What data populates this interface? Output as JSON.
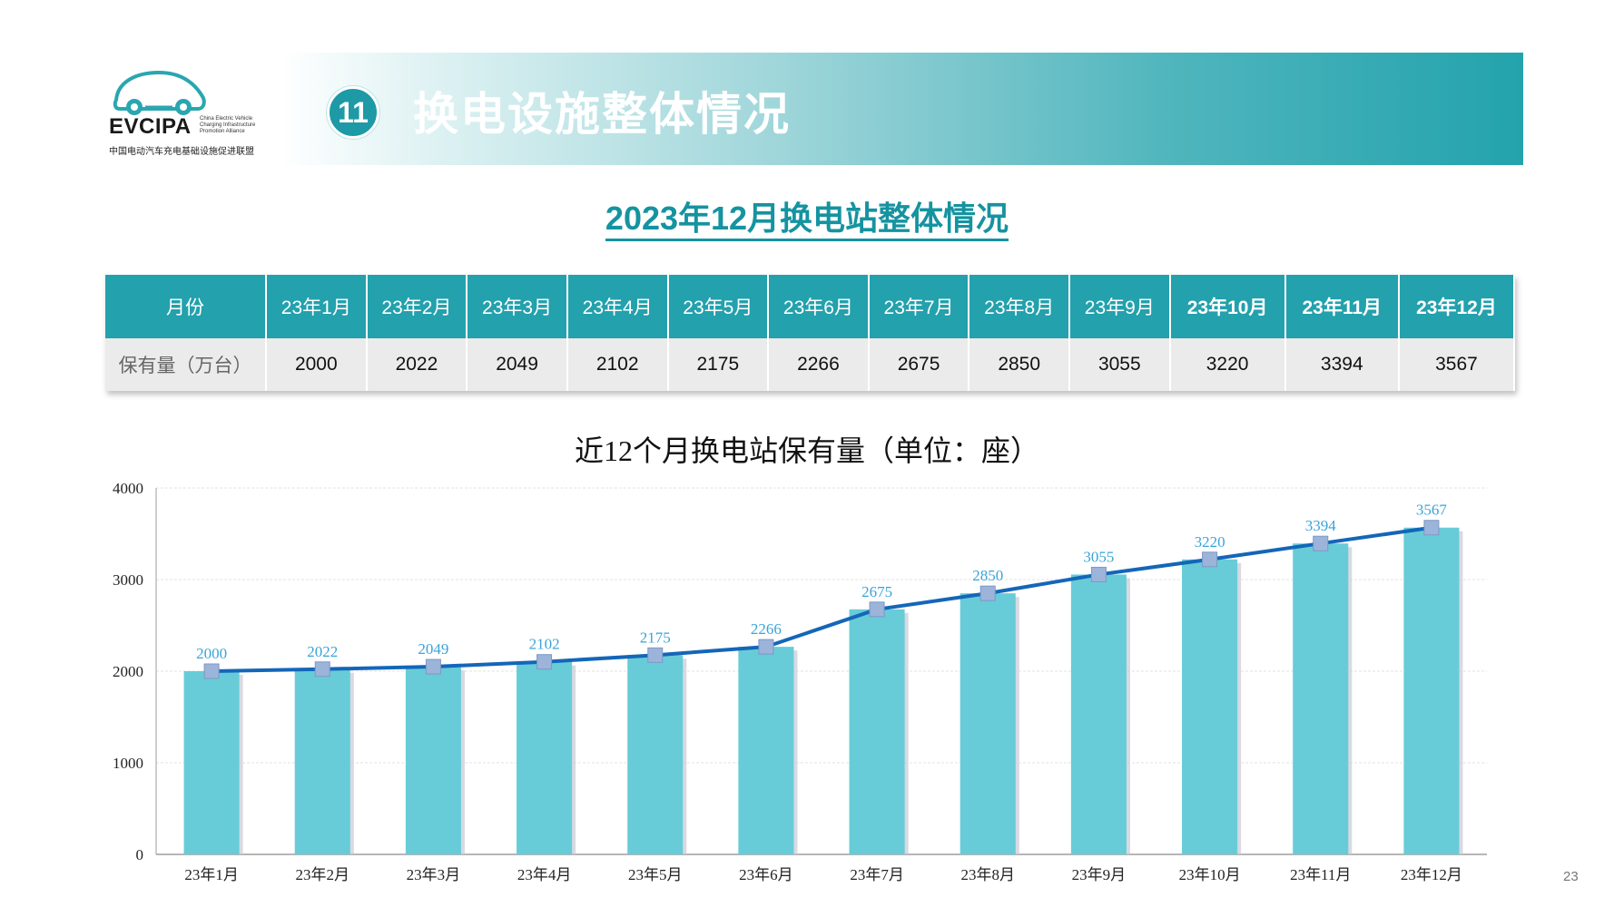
{
  "logo": {
    "name": "EVCIPA",
    "name_en": "China Electric Vehicle Charging Infrastructure Promotion Alliance",
    "name_cn": "中国电动汽车充电基础设施促进联盟"
  },
  "header": {
    "section_number": "11",
    "section_title": "换电设施整体情况"
  },
  "subtitle": "2023年12月换电站整体情况",
  "table": {
    "row_label_month": "月份",
    "row_label_value": "保有量（万台）",
    "months": [
      "23年1月",
      "23年2月",
      "23年3月",
      "23年4月",
      "23年5月",
      "23年6月",
      "23年7月",
      "23年8月",
      "23年9月",
      "23年10月",
      "23年11月",
      "23年12月"
    ],
    "values": [
      "2000",
      "2022",
      "2049",
      "2102",
      "2175",
      "2266",
      "2675",
      "2850",
      "3055",
      "3220",
      "3394",
      "3567"
    ]
  },
  "chart_data": {
    "type": "bar",
    "title": "近12个月换电站保有量（单位：座）",
    "categories": [
      "23年1月",
      "23年2月",
      "23年3月",
      "23年4月",
      "23年5月",
      "23年6月",
      "23年7月",
      "23年8月",
      "23年9月",
      "23年10月",
      "23年11月",
      "23年12月"
    ],
    "series": [
      {
        "type": "bar",
        "values": [
          2000,
          2022,
          2049,
          2102,
          2175,
          2266,
          2675,
          2850,
          3055,
          3220,
          3394,
          3567
        ]
      },
      {
        "type": "line",
        "values": [
          2000,
          2022,
          2049,
          2102,
          2175,
          2266,
          2675,
          2850,
          3055,
          3220,
          3394,
          3567
        ]
      }
    ],
    "ylim": [
      0,
      4000
    ],
    "yticks": [
      "0",
      "1000",
      "2000",
      "3000",
      "4000"
    ],
    "xlabel": "",
    "ylabel": "",
    "grid": true,
    "legend": "none",
    "colors": {
      "bar": "#67ccd8",
      "line": "#1466b8",
      "marker": "#9cb4da",
      "data_label": "#3aa3d8"
    }
  },
  "page_number": "23"
}
